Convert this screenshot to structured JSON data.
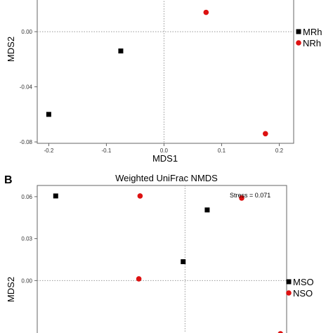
{
  "chart_data": [
    {
      "panel": "",
      "type": "scatter",
      "title": "",
      "xlabel": "MDS1",
      "ylabel": "MDS2",
      "xlim": [
        -0.22,
        0.225
      ],
      "ylim": [
        -0.081,
        0.024
      ],
      "x_ticks": [
        -0.2,
        -0.1,
        0.0,
        0.1,
        0.2
      ],
      "x_tick_labels": [
        "-0.2",
        "-0.1",
        "0.0",
        "0.1",
        "0.2"
      ],
      "y_ticks": [
        0.0,
        -0.04,
        -0.08
      ],
      "y_tick_labels": [
        "0.00",
        "-0.04",
        "-0.08"
      ],
      "reference_lines": {
        "x": 0,
        "y": 0
      },
      "series": [
        {
          "name": "MRh",
          "color": "#000000",
          "marker": "square",
          "points": [
            {
              "x": -0.075,
              "y": -0.014
            },
            {
              "x": -0.2,
              "y": -0.06
            }
          ]
        },
        {
          "name": "NRh",
          "color": "#dd1111",
          "marker": "circle",
          "points": [
            {
              "x": 0.073,
              "y": 0.014
            },
            {
              "x": 0.176,
              "y": -0.074
            }
          ]
        }
      ],
      "legend": "right"
    },
    {
      "panel": "B",
      "type": "scatter",
      "title": "Weighted UniFrac NMDS",
      "xlabel": "",
      "ylabel": "MDS2",
      "annotation": "Stress = 0.071",
      "xlim": [
        -0.24,
        0.165
      ],
      "ylim": [
        -0.04,
        0.068
      ],
      "y_ticks": [
        0.06,
        0.03,
        0.0
      ],
      "y_tick_labels": [
        "0.06",
        "0.03",
        "0.00"
      ],
      "reference_lines": {
        "x": 0,
        "y": 0
      },
      "series": [
        {
          "name": "MSO",
          "color": "#000000",
          "marker": "square",
          "points": [
            {
              "x": -0.21,
              "y": 0.0605
            },
            {
              "x": 0.036,
              "y": 0.0505
            },
            {
              "x": -0.003,
              "y": 0.0135
            }
          ]
        },
        {
          "name": "NSO",
          "color": "#dd1111",
          "marker": "circle",
          "points": [
            {
              "x": -0.073,
              "y": 0.0605
            },
            {
              "x": 0.092,
              "y": 0.059
            },
            {
              "x": -0.075,
              "y": 0.0012
            },
            {
              "x": 0.155,
              "y": -0.038
            }
          ]
        }
      ],
      "legend": "right"
    }
  ]
}
